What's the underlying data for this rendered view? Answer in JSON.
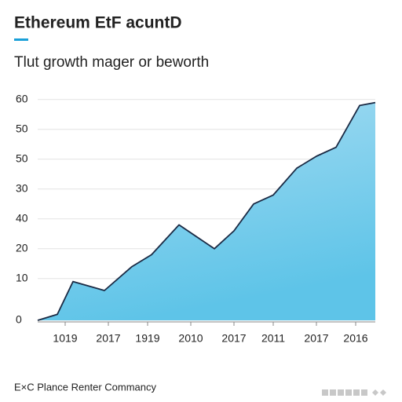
{
  "chart_data": {
    "type": "area",
    "title": "Ethereum EtF acuntD",
    "subtitle": "Tlut growth mager or beworth",
    "footer": "E×C Plance Renter Commancy",
    "x": [
      0,
      5,
      9,
      17,
      24,
      29,
      36,
      45,
      50,
      55,
      60,
      66,
      71,
      76,
      82,
      86
    ],
    "values": [
      0,
      2,
      13,
      10,
      18,
      22,
      32,
      24,
      30,
      39,
      42,
      51,
      55,
      58,
      72,
      73
    ],
    "xlim": [
      0,
      86
    ],
    "ylim": [
      0,
      75
    ],
    "xticks": [
      {
        "value": 7,
        "label": "1019"
      },
      {
        "value": 18,
        "label": "2017"
      },
      {
        "value": 28,
        "label": "1919"
      },
      {
        "value": 39,
        "label": "2010"
      },
      {
        "value": 50,
        "label": "2017"
      },
      {
        "value": 60,
        "label": "2011"
      },
      {
        "value": 71,
        "label": "2017"
      },
      {
        "value": 81,
        "label": "2016"
      }
    ],
    "yticks": [
      0,
      {
        "value": 14,
        "label": "10"
      },
      {
        "value": 24,
        "label": "20"
      },
      {
        "value": 34,
        "label": "40"
      },
      {
        "value": 44,
        "label": "30"
      },
      {
        "value": 54,
        "label": "50"
      },
      {
        "value": 64,
        "label": "50"
      },
      {
        "value": 74,
        "label": "60"
      }
    ],
    "grid": true,
    "color": "#5ec4e8",
    "line_color": "#1b2a44"
  }
}
